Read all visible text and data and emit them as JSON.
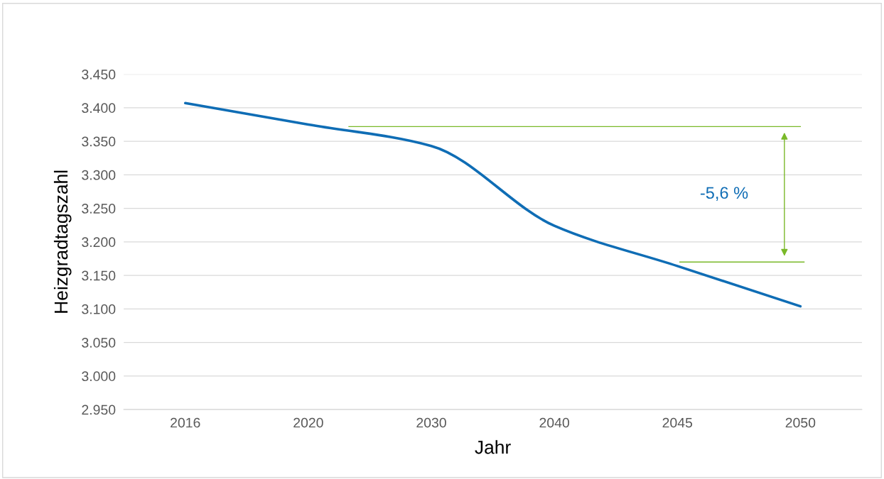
{
  "chart_data": {
    "type": "line",
    "xlabel": "Jahr",
    "ylabel": "Heizgradtagszahl",
    "categories": [
      "2016",
      "2020",
      "2030",
      "2040",
      "2045",
      "2050"
    ],
    "series": [
      {
        "color": "#0f6db5",
        "values": [
          3407,
          3375,
          3343,
          3224,
          3164,
          3104
        ]
      }
    ],
    "ylim": [
      2950,
      3450
    ],
    "yticks": [
      {
        "value": 2950,
        "label": "2.950"
      },
      {
        "value": 3000,
        "label": "3.000"
      },
      {
        "value": 3050,
        "label": "3.050"
      },
      {
        "value": 3100,
        "label": "3.100"
      },
      {
        "value": 3150,
        "label": "3.150"
      },
      {
        "value": 3200,
        "label": "3.200"
      },
      {
        "value": 3250,
        "label": "3.250"
      },
      {
        "value": 3300,
        "label": "3.300"
      },
      {
        "value": 3350,
        "label": "3.350"
      },
      {
        "value": 3400,
        "label": "3.400"
      },
      {
        "value": 3450,
        "label": "3.450"
      }
    ],
    "grid": "y",
    "legend": false,
    "ref_lines": [
      {
        "axis": "y",
        "value": 3372,
        "color": "#7ab929"
      },
      {
        "axis": "y",
        "value": 3170,
        "color": "#7ab929"
      }
    ],
    "annotations": [
      "-5,6 %"
    ]
  }
}
